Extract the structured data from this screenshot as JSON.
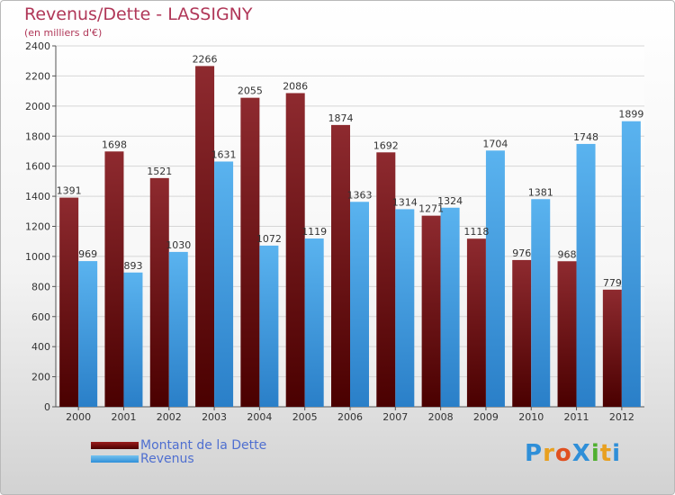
{
  "chart_data": {
    "type": "bar",
    "title": "Revenus/Dette - LASSIGNY",
    "subtitle": "(en milliers d'€)",
    "categories": [
      "2000",
      "2001",
      "2002",
      "2003",
      "2004",
      "2005",
      "2006",
      "2007",
      "2008",
      "2009",
      "2010",
      "2011",
      "2012"
    ],
    "series": [
      {
        "name": "Montant de la Dette",
        "color": "#7a1a1a",
        "values": [
          1391,
          1698,
          1521,
          2266,
          2055,
          2086,
          1874,
          1692,
          1271,
          1118,
          976,
          968,
          779
        ]
      },
      {
        "name": "Revenus",
        "color": "#4aa3e8",
        "values": [
          969,
          893,
          1030,
          1631,
          1072,
          1119,
          1363,
          1314,
          1324,
          1704,
          1381,
          1748,
          1899
        ]
      }
    ],
    "yticks": [
      0,
      200,
      400,
      600,
      800,
      1000,
      1200,
      1400,
      1600,
      1800,
      2000,
      2200,
      2400
    ],
    "ylim": [
      0,
      2400
    ],
    "grid": true,
    "legend_position": "bottom-left"
  },
  "logo": {
    "text": "ProXiti",
    "letters": [
      "P",
      "r",
      "o",
      "X",
      "i",
      "t",
      "i"
    ],
    "colors": [
      "#2f8fd8",
      "#e8a020",
      "#e05020",
      "#2f8fd8",
      "#50b030",
      "#e8a020",
      "#2f8fd8"
    ]
  }
}
